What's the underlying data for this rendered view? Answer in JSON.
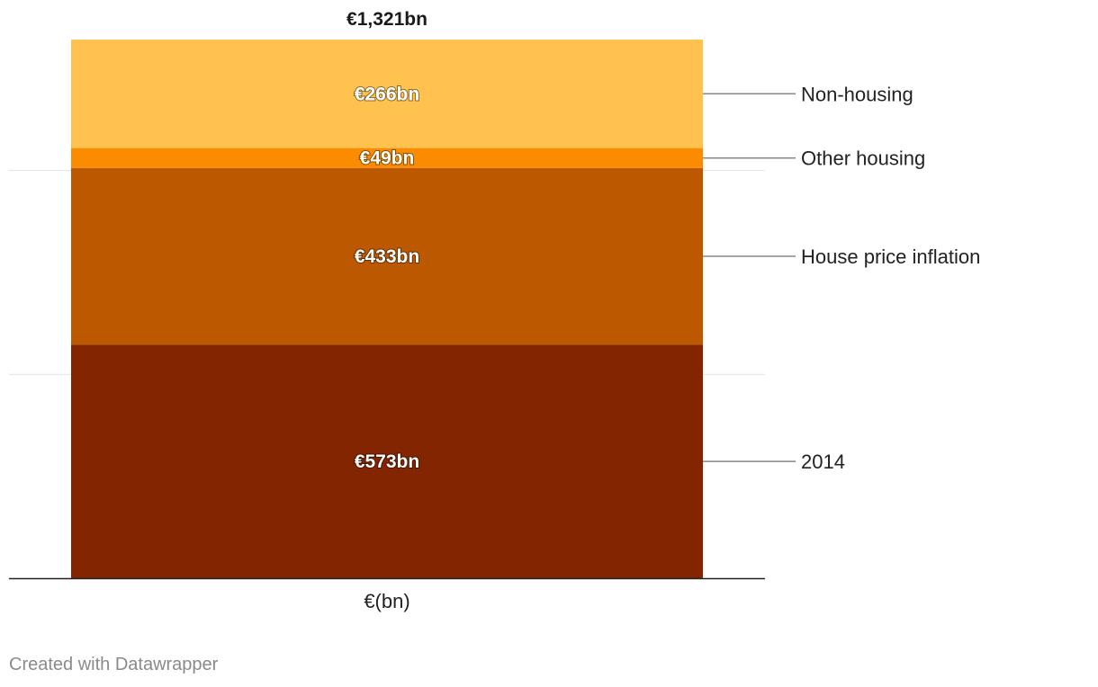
{
  "chart_data": {
    "type": "bar",
    "stacked": true,
    "categories": [
      "€(bn)"
    ],
    "series": [
      {
        "name": "2014",
        "values": [
          573
        ],
        "color": "#822500",
        "label": "€573bn"
      },
      {
        "name": "House price inflation",
        "values": [
          433
        ],
        "color": "#bb5800",
        "label": "€433bn"
      },
      {
        "name": "Other housing",
        "values": [
          49
        ],
        "color": "#fb8b00",
        "label": "€49bn"
      },
      {
        "name": "Non-housing",
        "values": [
          266
        ],
        "color": "#ffc24f",
        "label": "€266bn"
      }
    ],
    "total": {
      "value": 1321,
      "label": "€1,321bn"
    },
    "xlabel": "€(bn)",
    "ylabel": "",
    "ylim": [
      0,
      1321
    ],
    "gridlines": [
      500,
      1000
    ],
    "grid": true,
    "legend": "right, labels connected to segments"
  },
  "footer": {
    "credit": "Created with Datawrapper"
  }
}
